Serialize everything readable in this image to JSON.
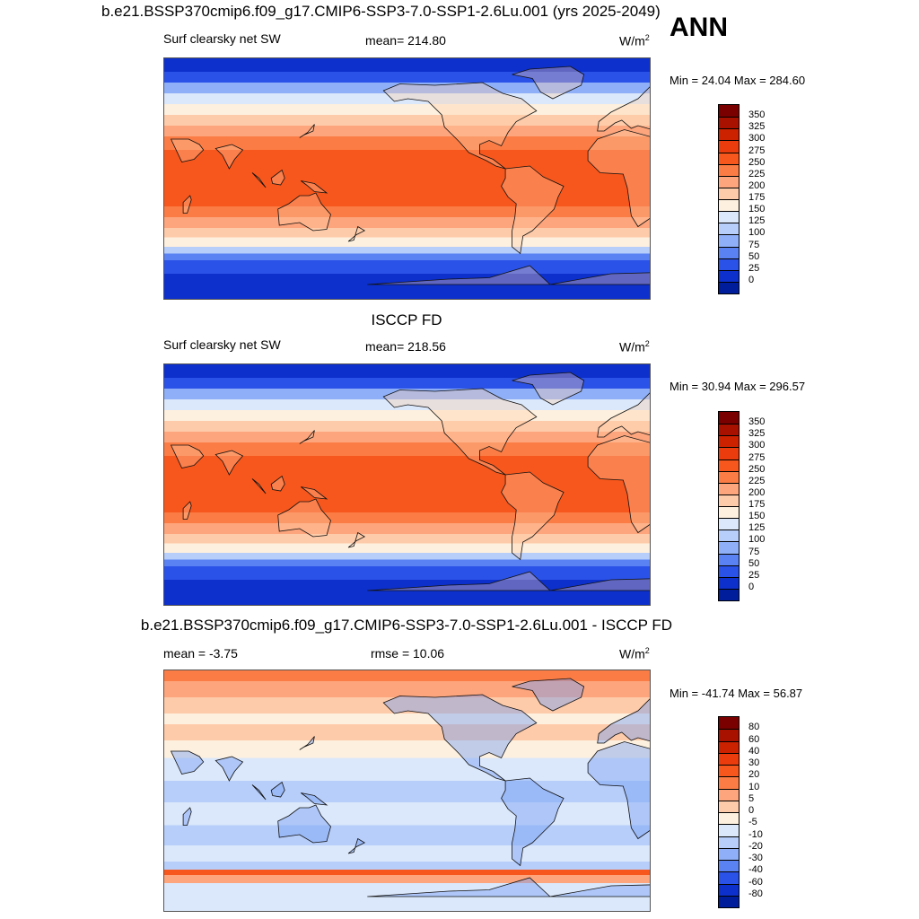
{
  "main_title": "b.e21.BSSP370cmip6.f09_g17.CMIP6-SSP3-7.0-SSP1-2.6Lu.001 (yrs 2025-2049)",
  "season": "ANN",
  "panels": [
    {
      "title": "",
      "variable": "Surf clearsky net SW",
      "center_stat": "mean= 214.80",
      "units": "W/m",
      "units_sup": "2",
      "minmax": "Min =  24.04 Max = 284.60",
      "kind": "abs",
      "colorbar": {
        "ticks": [
          "350",
          "325",
          "300",
          "275",
          "250",
          "225",
          "200",
          "175",
          "150",
          "125",
          "100",
          "75",
          "50",
          "25",
          "0"
        ],
        "colors": [
          "#7a0000",
          "#a81000",
          "#cc2200",
          "#ea3c0c",
          "#f7571c",
          "#fb7d45",
          "#fda57c",
          "#fecbaa",
          "#fdf0de",
          "#dbe8fb",
          "#b7cefa",
          "#8fb0f8",
          "#5a82f2",
          "#2b52e8",
          "#0d30cc",
          "#001e9c"
        ]
      }
    },
    {
      "title": "ISCCP FD",
      "variable": "Surf clearsky net SW",
      "center_stat": "mean= 218.56",
      "units": "W/m",
      "units_sup": "2",
      "minmax": "Min =  30.94 Max = 296.57",
      "kind": "abs",
      "colorbar": {
        "ticks": [
          "350",
          "325",
          "300",
          "275",
          "250",
          "225",
          "200",
          "175",
          "150",
          "125",
          "100",
          "75",
          "50",
          "25",
          "0"
        ],
        "colors": [
          "#7a0000",
          "#a81000",
          "#cc2200",
          "#ea3c0c",
          "#f7571c",
          "#fb7d45",
          "#fda57c",
          "#fecbaa",
          "#fdf0de",
          "#dbe8fb",
          "#b7cefa",
          "#8fb0f8",
          "#5a82f2",
          "#2b52e8",
          "#0d30cc",
          "#001e9c"
        ]
      }
    },
    {
      "title": "b.e21.BSSP370cmip6.f09_g17.CMIP6-SSP3-7.0-SSP1-2.6Lu.001 - ISCCP FD",
      "left_stat": "mean =  -3.75",
      "center_stat": "rmse =  10.06",
      "units": "W/m",
      "units_sup": "2",
      "minmax": "Min = -41.74 Max =  56.87",
      "kind": "diff",
      "colorbar": {
        "ticks": [
          "80",
          "60",
          "40",
          "30",
          "20",
          "10",
          "5",
          "0",
          "-5",
          "-10",
          "-20",
          "-30",
          "-40",
          "-60",
          "-80"
        ],
        "colors": [
          "#7a0000",
          "#a81000",
          "#cc2200",
          "#ea3c0c",
          "#f7571c",
          "#fb7d45",
          "#fda57c",
          "#fecbaa",
          "#fdf0de",
          "#dbe8fb",
          "#b7cefa",
          "#8fb0f8",
          "#5a82f2",
          "#2b52e8",
          "#0d30cc",
          "#001e9c"
        ]
      }
    }
  ]
}
